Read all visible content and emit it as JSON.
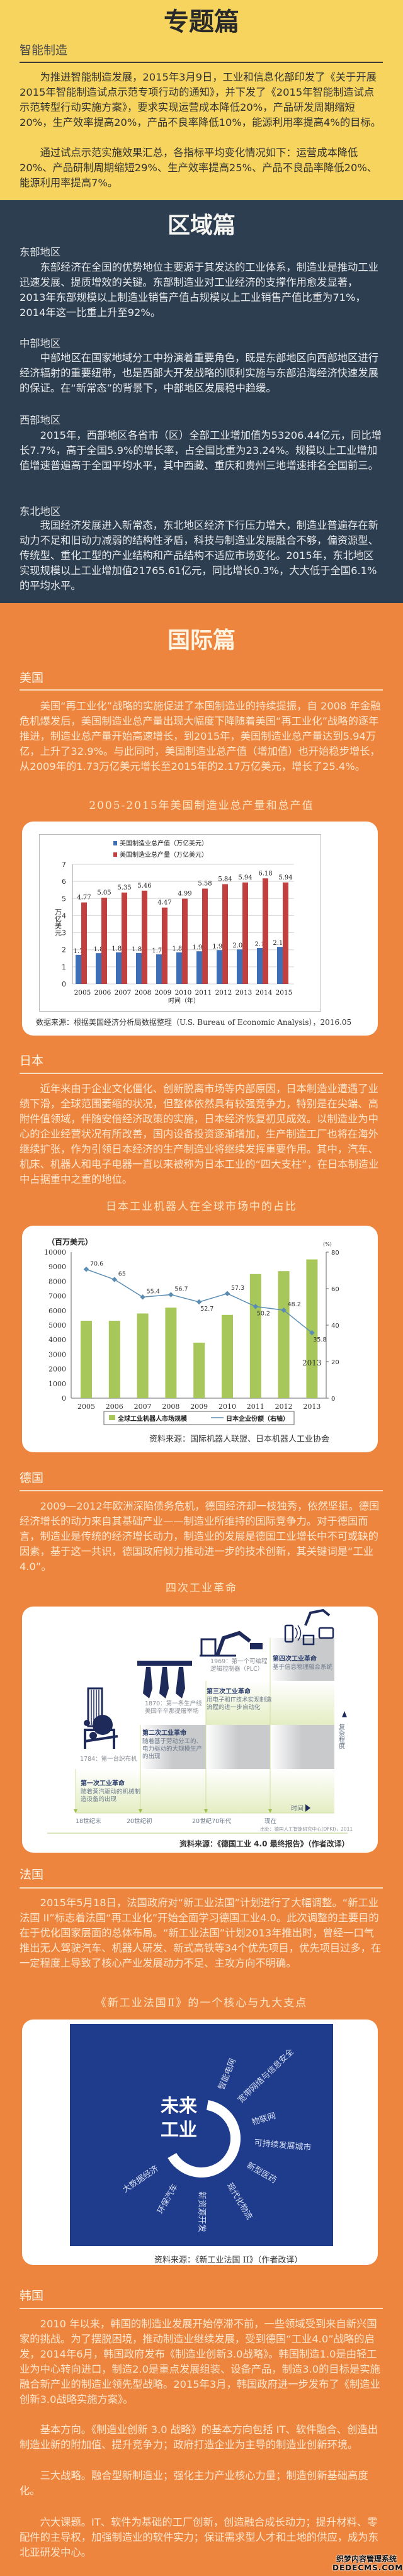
{
  "topic": {
    "title": "专题篇",
    "subtitle": "智能制造",
    "paragraphs": [
      "为推进智能制造发展，2015年3月9日，工业和信息化部印发了《关于开展2015年智能制造试点示范专项行动的通知》，并下发了《2015年智能制造试点示范转型行动实施方案》，要求实现运营成本降低20%，产品研发周期缩短20%，生产效率提高20%，产品不良率降低10%，能源利用率提高4%的目标。",
      "通过试点示范实施效果汇总，各指标平均变化情况如下：运营成本降低20%、产品研制周期缩短29%、生产效率提高25%、产品不良品率降低20%、能源利用率提高7%。"
    ]
  },
  "region": {
    "title": "区域篇",
    "sections": [
      {
        "heading": "东部地区",
        "paragraph": "东部经济在全国的优势地位主要源于其发达的工业体系，制造业是推动工业迅速发展、提质增效的关键。东部制造业对工业经济的支撑作用愈发显著，2013年东部规模以上制造业销售产值占规模以上工业销售产值比重为71%，2014年这一比重上升至92%。"
      },
      {
        "heading": "中部地区",
        "paragraph": "中部地区在国家地域分工中扮演着重要角色，既是东部地区向西部地区进行经济辐射的重要纽带，也是西部大开发战略的顺利实施与东部沿海经济快速发展的保证。在“新常态”的背景下，中部地区发展稳中趋缓。"
      },
      {
        "heading": "西部地区",
        "paragraph": "2015年，西部地区各省市（区）全部工业增加值为53206.44亿元，同比增长7.7%，高于全国5.9%的增长率，占全国比重为23.24%。规模以上工业增加值增速普遍高于全国平均水平，其中西藏、重庆和贵州三地增速排名全国前三。"
      },
      {
        "heading": "东北地区",
        "paragraph": "我国经济发展进入新常态，东北地区经济下行压力增大，制造业普遍存在新动力不足和旧动力减弱的结构性矛盾，科技与制造业发展融合不够，偏资源型、传统型、重化工型的产业结构和产品结构不适应市场变化。2015年，东北地区实现规模以上工业增加值21765.61亿元，同比增长0.3%，大大低于全国6.1%的平均水平。"
      }
    ]
  },
  "intl": {
    "title": "国际篇",
    "usa": {
      "heading": "美国",
      "paragraph": "美国“再工业化”战略的实施促进了本国制造业的持续提振，自 2008 年金融危机爆发后，美国制造业总产量出现大幅度下降随着美国“再工业化”战略的逐年推进，制造业总产量开始高速增长，到2015年，美国制造业总产量达到5.94万亿，上升了32.9%。与此同时，美国制造业总产值（增加值）也开始稳步增长，从2009年的1.73万亿美元增长至2015年的2.17万亿美元，增长了25.4%。"
    },
    "japan": {
      "heading": "日本",
      "paragraph": "近年来由于企业文化僵化、创新脱离市场等内部原因，日本制造业遭遇了业绩下滑，全球范围萎缩的状况，但整体依然具有较强竞争力，特别是在尖端、高附件值领域，伴随安倍经济政策的实施，日本经济恢复初见成效。以制造业为中心的企业经营状况有所改善，国内设备投资逐渐增加，生产制造工厂也将在海外继续扩张，作为引领日本经济的生产制造业将继续发挥重要作用。其中，汽车、机床、机器人和电子电器一直以来被称为日本工业的“四大支柱”，在日本制造业中占据重中之重的地位。"
    },
    "germany": {
      "heading": "德国",
      "paragraph": "2009—2012年欧洲深陷债务危机，德国经济却一枝独秀，依然坚挺。德国经济增长的动力来自其基础产业——制造业所维持的国际竞争力。对于德国而言，制造业是传统的经济增长动力，制造业的发展是德国工业增长中不可或缺的因素，基于这一共识，德国政府倾力推动进一步的技术创新，其关键词是“工业4.0”。",
      "diagram_title": "四次工业革命"
    },
    "france": {
      "heading": "法国",
      "paragraph": "2015年5月18日，法国政府对“新工业法国”计划进行了大幅调整。“新工业法国 II”标志着法国“再工业化”开始全面学习德国工业4.0。此次调整的主要目的在于优化国家层面的总体布局。“新工业法国”计划2013年推出时，曾经一口气推出无人驾驶汽车、机器人研发、新式高铁等34个优先项目，优先项目过多，在一定程度上导致了核心产业发展动力不足、主攻方向不明确。",
      "diagram_title": "《新工业法国Ⅱ》的一个核心与九大支点"
    },
    "korea": {
      "heading": "韩国",
      "paragraphs": [
        "2010 年以来，韩国的制造业发展开始停滞不前，一些领域受到来自新兴国家的挑战。为了摆脱困境，推动制造业继续发展，受到德国“工业4.0”战略的启发，2014年6月，韩国政府发布《制造业创新3.0战略》。韩国制造1.0是由轻工业为中心转向进口，制造2.0是重点发展组装、设备产品，制造3.0的目标是实施融合新产业的制造业领先型战略。2015年3月，韩国政府进一步发布了《制造业创新3.0战略实施方案》。",
        "基本方向。《制造业创新 3.0 战略》的基本方向包括 IT、软件融合、创造出制造业新的附加值、提升竞争力；政府打造企业为主导的制造业创新环境。",
        "三大战略。融合型新制造业；强化主力产业核心力量；制造创新基础高度化。",
        "六大课题。IT、软件为基础的工厂创新，创造融合成长动力；提升材料、零配件的主导权，加强制造业的软件实力；保证需求型人才和土地的供应，成为东北亚研发中心。"
      ]
    }
  },
  "chart_data": [
    {
      "type": "bar",
      "title": "2005-2015年美国制造业总产量和总产值",
      "categories": [
        "2005",
        "2006",
        "2007",
        "2008",
        "2009",
        "2010",
        "2011",
        "2012",
        "2013",
        "2014",
        "2015"
      ],
      "series": [
        {
          "name": "美国制造业总产值（万亿美元）",
          "color": "#3f6fb6",
          "values": [
            1.7,
            1.8,
            1.85,
            1.81,
            1.73,
            1.85,
            1.91,
            1.98,
            2.02,
            2.1,
            2.17
          ]
        },
        {
          "name": "美国制造业总产量（万亿美元）",
          "color": "#c0413f",
          "values": [
            4.77,
            5.05,
            5.35,
            5.46,
            4.47,
            4.99,
            5.58,
            5.84,
            5.94,
            6.18,
            5.94
          ]
        }
      ],
      "xlabel": "时间（年）",
      "ylabel": "万亿美元",
      "ylim": [
        0,
        7
      ],
      "yticks": [
        0,
        1,
        2,
        3,
        4,
        5,
        6,
        7
      ],
      "grid": true,
      "legend": "top",
      "data_labels": true,
      "source": "数据来源：根据美国经济分析局数据整理（U.S. Bureau of Economic Analysis），2016.05"
    },
    {
      "type": "bar+line",
      "title": "日本工业机器人在全球市场中的占比",
      "categories": [
        "2005",
        "2006",
        "2007",
        "2008",
        "2009",
        "2010",
        "2011",
        "2012",
        "2013"
      ],
      "series": [
        {
          "name": "全球工业机器人市场规模",
          "type": "bar",
          "axis": "left",
          "color": "#a8c75a",
          "values": [
            5300,
            5300,
            5800,
            6200,
            3800,
            5700,
            8500,
            8700,
            9500
          ]
        },
        {
          "name": "日本企业份额（右轴）",
          "type": "line",
          "axis": "right",
          "color": "#5b8db3",
          "values": [
            70.6,
            65.0,
            55.4,
            56.7,
            52.7,
            57.3,
            50.2,
            48.2,
            35.8
          ]
        }
      ],
      "ylabel_left": "（百万美元）",
      "ylim_left": [
        0,
        10000
      ],
      "yticks_left": [
        0,
        1000,
        2000,
        3000,
        4000,
        5000,
        6000,
        7000,
        8000,
        9000,
        10000
      ],
      "ylabel_right": "(%)",
      "ylim_right": [
        0,
        80
      ],
      "yticks_right": [
        0,
        20,
        40,
        60,
        80
      ],
      "annotation": "2013",
      "legend": "bottom",
      "source": "资料来源：国际机器人联盟、日本机器人工业协会"
    }
  ],
  "revolution_diagram": {
    "stages": [
      {
        "label": "第一次工业革命",
        "desc": [
          "随着蒸汽驱动的机械制",
          "造设备的出现"
        ],
        "milestone": [
          "1784：第一台织布机"
        ],
        "time": "18世纪末",
        "icon": "loom-icon"
      },
      {
        "label": "第二次工业革命",
        "desc": [
          "随着基于劳动分工的、",
          "电力驱动的大规模生产",
          "的出现"
        ],
        "milestone": [
          "1870：第一条生产线",
          "美国辛辛那提屠宰场"
        ],
        "time": "20世纪初",
        "icon": "production-line-icon"
      },
      {
        "label": "第三次工业革命",
        "desc": [
          "用电子和IT技术实现制造",
          "流程的进一步自动化"
        ],
        "milestone": [
          "1969：第一个可编程",
          "逻辑控制器（PLC）"
        ],
        "time": "20世纪70年代",
        "icon": "robot-arm-icon"
      },
      {
        "label": "第四次工业革命",
        "desc": [
          "基于信息物理融合系统"
        ],
        "milestone": [],
        "time": "现在",
        "icon": "connected-devices-icon"
      }
    ],
    "y_axis": "复杂程度",
    "x_axis": "时间",
    "origin_note": "出处：德国人工智能研究中心(DFKI)，2011",
    "source": "资料来源：《德国工业 4.0 最终报告》（作者改译）"
  },
  "france_diagram": {
    "core": [
      "未来",
      "工业"
    ],
    "pillars": [
      "智能电网",
      "宽带网络与信息安全",
      "物联网",
      "可持续发展城市",
      "新型医药",
      "现代化物流",
      "新资源开发",
      "环保汽车",
      "大数据经济"
    ],
    "source": "资料来源：《新工业法国 II》（作者改译）"
  },
  "watermark": {
    "line1": "织梦内容管理系统",
    "line2": "DEDECMS.COM"
  },
  "colors": {
    "yellow": "#f6d45e",
    "dark": "#2d3e50",
    "orange": "#ee853f",
    "navy": "#1f3c8c"
  }
}
